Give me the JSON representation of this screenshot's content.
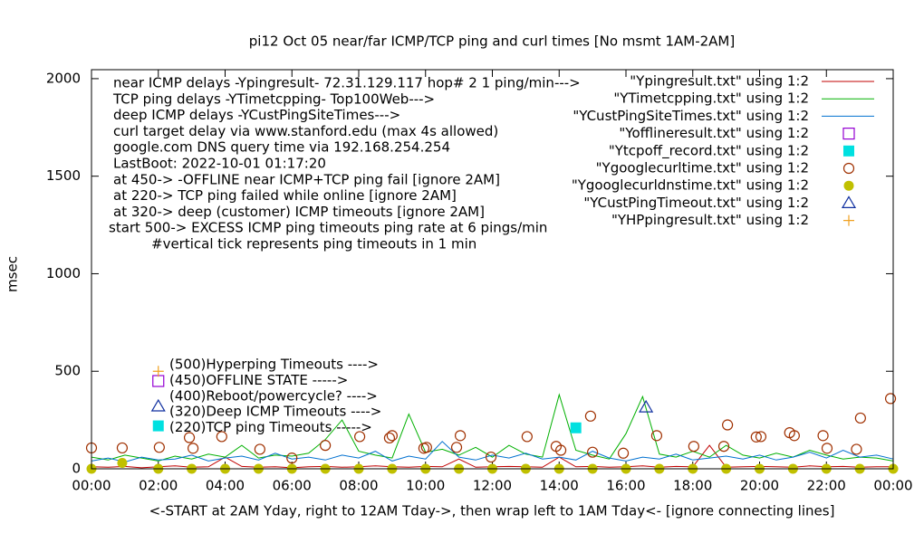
{
  "chart_data": {
    "type": "line",
    "title": "pi12 Oct 05  near/far ICMP/TCP ping and curl times [No msmt 1AM-2AM]",
    "y_label": "msec",
    "x_label": "<-START at 2AM Yday, right to 12AM Tday->, then wrap left to 1AM Tday<- [ignore connecting lines]",
    "xlim": [
      0,
      24
    ],
    "ylim": [
      0,
      2046
    ],
    "xticks": [
      {
        "value": 0,
        "label": "00:00"
      },
      {
        "value": 2,
        "label": "02:00"
      },
      {
        "value": 4,
        "label": "04:00"
      },
      {
        "value": 6,
        "label": "06:00"
      },
      {
        "value": 8,
        "label": "08:00"
      },
      {
        "value": 10,
        "label": "10:00"
      },
      {
        "value": 12,
        "label": "12:00"
      },
      {
        "value": 14,
        "label": "14:00"
      },
      {
        "value": 16,
        "label": "16:00"
      },
      {
        "value": 18,
        "label": "18:00"
      },
      {
        "value": 20,
        "label": "20:00"
      },
      {
        "value": 22,
        "label": "22:00"
      },
      {
        "value": 24,
        "label": "00:00"
      }
    ],
    "yticks": [
      0,
      500,
      1000,
      1500,
      2000
    ],
    "grid": false,
    "legend": "top-right",
    "annotations": [
      "near ICMP delays -Ypingresult- 72.31.129.117 hop# 2  1 ping/min--->",
      "TCP ping delays -YTimetcpping- Top100Web--->",
      "deep ICMP delays -YCustPingSiteTimes--->",
      "curl target delay via www.stanford.edu (max 4s allowed)",
      "google.com DNS query time via 192.168.254.254",
      "LastBoot: 2022-10-01 01:17:20",
      "at 450-> -OFFLINE near ICMP+TCP ping fail [ignore 2AM]",
      "at 220-> TCP ping failed while online [ignore 2AM]",
      "at 320-> deep (customer) ICMP timeouts [ignore 2AM]",
      "start 500-> EXCESS ICMP ping timeouts ping rate at 6 pings/min",
      "#vertical tick represents ping timeouts in 1 min"
    ],
    "key_notes": [
      "(500)Hyperping Timeouts ---->",
      "(450)OFFLINE STATE ----->",
      "(400)Reboot/powercycle? ---->",
      "(320)Deep ICMP Timeouts ---->",
      "(220)TCP ping Timeouts ----->"
    ],
    "series": [
      {
        "name": "\"Ypingresult.txt\" using 1:2",
        "color": "#c00000",
        "marker": "line",
        "x": [
          0,
          0.5,
          1,
          1.5,
          2,
          2.5,
          3,
          3.5,
          4,
          4.5,
          5,
          5.5,
          6,
          6.5,
          7,
          7.5,
          8,
          8.5,
          9,
          9.5,
          10,
          10.5,
          11,
          11.5,
          12,
          12.5,
          13,
          13.5,
          14,
          14.5,
          15,
          15.5,
          16,
          16.5,
          17,
          17.5,
          18,
          18.5,
          19,
          19.5,
          20,
          20.5,
          21,
          21.5,
          22,
          22.5,
          23,
          23.5,
          24
        ],
        "values": [
          10,
          8,
          12,
          5,
          10,
          15,
          8,
          10,
          60,
          12,
          8,
          10,
          5,
          10,
          12,
          8,
          10,
          15,
          10,
          8,
          12,
          10,
          50,
          8,
          10,
          12,
          10,
          8,
          60,
          10,
          12,
          8,
          10,
          15,
          8,
          12,
          10,
          120,
          8,
          10,
          12,
          10,
          8,
          15,
          10,
          12,
          8,
          10,
          10
        ]
      },
      {
        "name": "\"YTimetcpping.txt\" using 1:2",
        "color": "#00b000",
        "marker": "line",
        "x": [
          0,
          0.5,
          1,
          1.5,
          2,
          2.5,
          3,
          3.5,
          4,
          4.5,
          5,
          5.5,
          6,
          6.5,
          7,
          7.5,
          8,
          8.5,
          9,
          9.5,
          10,
          10.5,
          11,
          11.5,
          12,
          12.5,
          13,
          13.5,
          14,
          14.5,
          15,
          15.5,
          16,
          16.5,
          17,
          17.5,
          18,
          18.5,
          19,
          19.5,
          20,
          20.5,
          21,
          21.5,
          22,
          22.5,
          23,
          23.5,
          24
        ],
        "values": [
          60,
          45,
          70,
          55,
          40,
          65,
          50,
          75,
          60,
          120,
          55,
          70,
          65,
          80,
          150,
          250,
          90,
          70,
          55,
          280,
          85,
          100,
          70,
          110,
          60,
          120,
          75,
          60,
          380,
          95,
          70,
          50,
          180,
          370,
          75,
          60,
          90,
          60,
          120,
          70,
          55,
          80,
          60,
          95,
          70,
          50,
          60,
          55,
          40
        ]
      },
      {
        "name": "\"YCustPingSiteTimes.txt\" using 1:2",
        "color": "#0070d0",
        "marker": "line",
        "x": [
          0,
          0.5,
          1,
          1.5,
          2,
          2.5,
          3,
          3.5,
          4,
          4.5,
          5,
          5.5,
          6,
          6.5,
          7,
          7.5,
          8,
          8.5,
          9,
          9.5,
          10,
          10.5,
          11,
          11.5,
          12,
          12.5,
          13,
          13.5,
          14,
          14.5,
          15,
          15.5,
          16,
          16.5,
          17,
          17.5,
          18,
          18.5,
          19,
          19.5,
          20,
          20.5,
          21,
          21.5,
          22,
          22.5,
          23,
          23.5,
          24
        ],
        "values": [
          40,
          55,
          35,
          60,
          45,
          50,
          70,
          40,
          55,
          65,
          45,
          80,
          50,
          60,
          45,
          70,
          55,
          90,
          40,
          65,
          50,
          140,
          60,
          45,
          70,
          55,
          80,
          50,
          60,
          45,
          90,
          55,
          40,
          60,
          50,
          75,
          45,
          55,
          65,
          50,
          70,
          45,
          60,
          85,
          55,
          95,
          60,
          70,
          50
        ]
      },
      {
        "name": "\"Yofflineresult.txt\" using 1:2",
        "color": "#9400d3",
        "marker": "square-open",
        "x": [
          2
        ],
        "values": [
          450
        ]
      },
      {
        "name": "\"Ytcpoff_record.txt\" using 1:2",
        "color": "#00e0e0",
        "marker": "square",
        "x": [
          2,
          14.5
        ],
        "values": [
          220,
          210
        ]
      },
      {
        "name": "\"Ygooglecurltime.txt\" using 1:2",
        "color": "#a03000",
        "marker": "circle-open",
        "x": [
          0,
          0.92,
          2.03,
          2.93,
          3.04,
          3.9,
          5.04,
          6,
          7,
          8.03,
          8.92,
          9,
          9.95,
          10.03,
          10.93,
          11.04,
          11.96,
          13.04,
          13.91,
          14.05,
          14.94,
          15,
          15.92,
          16.92,
          18.03,
          18.93,
          19.04,
          19.9,
          20.04,
          20.9,
          21.04,
          21.9,
          22.02,
          22.9,
          23.02,
          23.92
        ],
        "values": [
          107,
          107,
          110,
          160,
          105,
          165,
          100,
          55,
          120,
          165,
          158,
          170,
          105,
          110,
          110,
          170,
          60,
          165,
          115,
          95,
          270,
          85,
          80,
          170,
          115,
          115,
          225,
          163,
          165,
          185,
          170,
          170,
          105,
          100,
          260,
          360
        ]
      },
      {
        "name": "\"Ygooglecurldnstime.txt\" using 1:2",
        "color": "#c0c000",
        "marker": "circle",
        "x": [
          0,
          0.92,
          2,
          3,
          4,
          5,
          6,
          7,
          8,
          9,
          10,
          11,
          12,
          13,
          14,
          15,
          16,
          17,
          18,
          19,
          20,
          21,
          22,
          23,
          24
        ],
        "values": [
          0,
          30,
          0,
          0,
          0,
          0,
          0,
          0,
          0,
          0,
          0,
          0,
          0,
          0,
          0,
          0,
          0,
          0,
          0,
          0,
          0,
          0,
          0,
          0,
          0
        ]
      },
      {
        "name": "\"YCustPingTimeout.txt\" using 1:2",
        "color": "#1030a0",
        "marker": "triangle-open",
        "x": [
          2,
          16.6
        ],
        "values": [
          320,
          315
        ]
      },
      {
        "name": "\"YHPpingresult.txt\" using 1:2",
        "color": "#f0a020",
        "marker": "plus",
        "x": [
          2
        ],
        "values": [
          500
        ]
      }
    ]
  }
}
